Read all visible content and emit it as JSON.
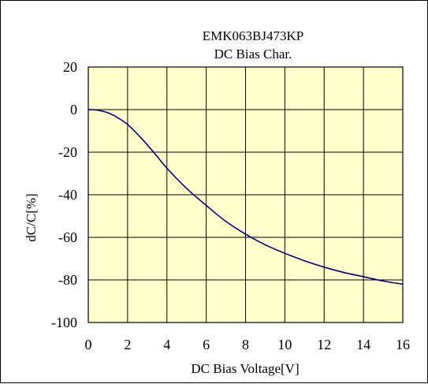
{
  "chart_data": {
    "type": "line",
    "title": "EMK063BJ473KP",
    "subtitle": "DC Bias Char.",
    "xlabel": "DC Bias Voltage[V]",
    "ylabel": "dC/C[%]",
    "xlim": [
      0,
      16
    ],
    "ylim": [
      -100,
      20
    ],
    "xticks": [
      "0",
      "2",
      "4",
      "6",
      "8",
      "10",
      "12",
      "14",
      "16"
    ],
    "yticks": [
      "20",
      "0",
      "-20",
      "-40",
      "-60",
      "-80",
      "-100"
    ],
    "grid": true,
    "plot_background": "#ffffcc",
    "line_color": "#000080",
    "series": [
      {
        "values": [
          [
            0,
            0
          ],
          [
            0.5,
            -0.3
          ],
          [
            1,
            -1.5
          ],
          [
            1.5,
            -3.8
          ],
          [
            2,
            -7
          ],
          [
            2.5,
            -11.5
          ],
          [
            3,
            -16.5
          ],
          [
            3.5,
            -22
          ],
          [
            4,
            -27.5
          ],
          [
            5,
            -37
          ],
          [
            6,
            -45
          ],
          [
            7,
            -52.5
          ],
          [
            8,
            -58.5
          ],
          [
            9,
            -63.5
          ],
          [
            10,
            -67.5
          ],
          [
            11,
            -71
          ],
          [
            12,
            -74
          ],
          [
            13,
            -76.5
          ],
          [
            14,
            -78.5
          ],
          [
            15,
            -80.5
          ],
          [
            16,
            -82
          ]
        ]
      }
    ]
  }
}
